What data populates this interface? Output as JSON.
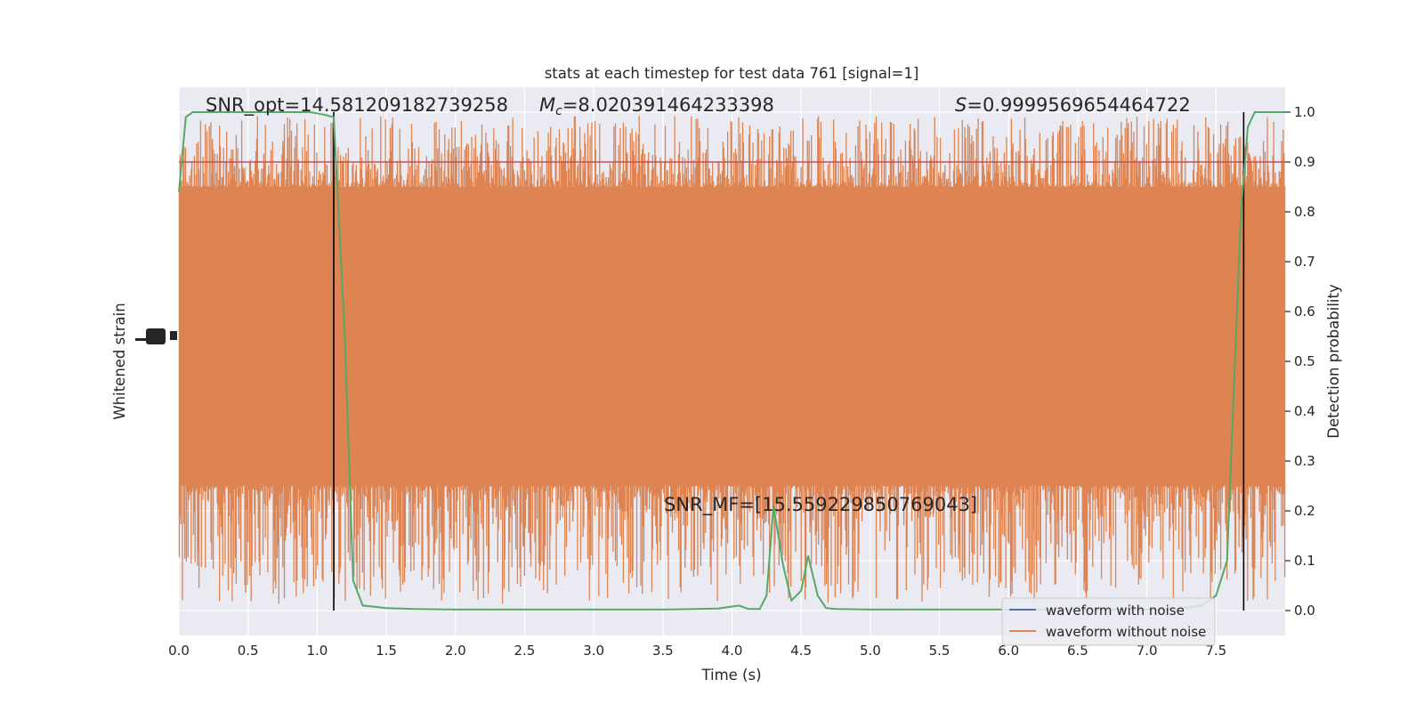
{
  "chart_data": {
    "type": "line",
    "title": "stats at each timestep for test data 761 [signal=1]",
    "xlabel": "Time (s)",
    "ylabel_left": "Whitened strain",
    "ylabel_right": "Detection probability",
    "xlim": [
      0.0,
      8.0
    ],
    "ylim_right": [
      -0.05,
      1.05
    ],
    "x_ticks": [
      "0.0",
      "0.5",
      "1.0",
      "1.5",
      "2.0",
      "2.5",
      "3.0",
      "3.5",
      "4.0",
      "4.5",
      "5.0",
      "5.5",
      "6.0",
      "6.5",
      "7.0",
      "7.5"
    ],
    "y_ticks_right": [
      "0.0",
      "0.1",
      "0.2",
      "0.3",
      "0.4",
      "0.5",
      "0.6",
      "0.7",
      "0.8",
      "0.9",
      "1.0"
    ],
    "grid": true,
    "annotations": {
      "snr_opt": "SNR_opt=14.581209182739258",
      "mc_symbol": "M",
      "mc_subscript": "c",
      "mc_value": "=8.020391464233398",
      "s_symbol": "S",
      "s_value": "=0.9999569654464722",
      "snr_mf": "SNR_MF=[15.559229850769043]"
    },
    "threshold": 0.9,
    "vlines": [
      1.12,
      7.7
    ],
    "series": [
      {
        "name": "waveform with noise",
        "color": "#4c72b0"
      },
      {
        "name": "waveform without noise",
        "color": "#dd8452"
      }
    ],
    "noise_band": {
      "color": "#dd8452",
      "core_range": [
        0.25,
        0.85
      ],
      "spike_max": 1.0,
      "spike_min": 0.0
    },
    "probability": {
      "color": "#55a868",
      "x": [
        0.0,
        0.05,
        0.1,
        0.2,
        0.4,
        0.6,
        0.8,
        0.95,
        1.05,
        1.12,
        1.2,
        1.26,
        1.33,
        1.4,
        1.5,
        1.7,
        2.0,
        2.5,
        3.0,
        3.5,
        3.9,
        4.05,
        4.12,
        4.2,
        4.25,
        4.3,
        4.37,
        4.43,
        4.5,
        4.55,
        4.62,
        4.68,
        4.75,
        5.0,
        5.5,
        6.0,
        6.5,
        7.0,
        7.2,
        7.4,
        7.5,
        7.58,
        7.63,
        7.68,
        7.73,
        7.78,
        7.85,
        8.0
      ],
      "y": [
        0.84,
        0.99,
        1.0,
        1.0,
        1.0,
        1.0,
        1.0,
        1.0,
        0.995,
        0.99,
        0.55,
        0.06,
        0.01,
        0.008,
        0.005,
        0.003,
        0.002,
        0.002,
        0.002,
        0.002,
        0.004,
        0.01,
        0.003,
        0.003,
        0.03,
        0.21,
        0.09,
        0.02,
        0.04,
        0.11,
        0.03,
        0.005,
        0.003,
        0.002,
        0.002,
        0.002,
        0.002,
        0.002,
        0.002,
        0.01,
        0.03,
        0.1,
        0.45,
        0.8,
        0.97,
        1.0,
        1.0,
        1.0
      ]
    }
  }
}
